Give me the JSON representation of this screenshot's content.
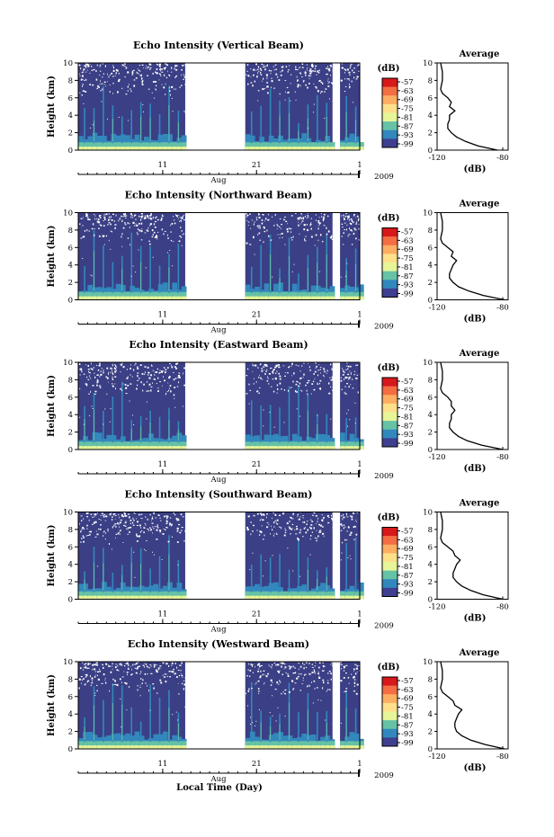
{
  "figure": {
    "xlabel": "Local Time (Day)",
    "time_axis": {
      "month_label": "Aug",
      "year_label": "2009",
      "tick_labels": [
        "11",
        "21",
        "1"
      ]
    },
    "colorbar": {
      "unit_label": "(dB)",
      "tick_labels": [
        "-57",
        "-63",
        "-69",
        "-75",
        "-81",
        "-87",
        "-93",
        "-99"
      ],
      "colors": [
        "#d7191c",
        "#f46d43",
        "#fdae61",
        "#fee08b",
        "#e6f598",
        "#66c2a5",
        "#3288bd",
        "#3f3f8f"
      ]
    },
    "panel_background": "#3b3f85"
  },
  "chart_data": [
    {
      "type": "heatmap",
      "title": "Echo Intensity (Vertical Beam)",
      "ylabel": "Height (km)",
      "ylim": [
        0,
        10
      ],
      "yticks": [
        0,
        2,
        4,
        6,
        8,
        10
      ],
      "x_tick_labels": [
        "11",
        "21",
        "1"
      ],
      "data_gaps": [
        [
          "Aug 13",
          "Aug 20"
        ],
        [
          "Aug 29",
          "Aug 30"
        ]
      ],
      "profile": {
        "title": "Average",
        "xlabel": "(dB)",
        "xticks": [
          "-120",
          "-80"
        ],
        "xlim": [
          -120,
          -80
        ],
        "height_km": [
          0,
          0.5,
          1,
          1.5,
          2,
          2.5,
          3,
          3.5,
          4,
          4.5,
          5,
          5.5,
          6,
          6.5,
          7,
          8,
          9,
          10
        ],
        "intensity_db": [
          -86,
          -97,
          -104,
          -109,
          -112,
          -114,
          -114,
          -113,
          -113,
          -110,
          -113,
          -112,
          -114,
          -117,
          -118,
          -117,
          -117,
          -118
        ]
      }
    },
    {
      "type": "heatmap",
      "title": "Echo Intensity (Northward Beam)",
      "ylabel": "Height (km)",
      "ylim": [
        0,
        10
      ],
      "yticks": [
        0,
        2,
        4,
        6,
        8,
        10
      ],
      "x_tick_labels": [
        "11",
        "21",
        "1"
      ],
      "data_gaps": [
        [
          "Aug 13",
          "Aug 20"
        ],
        [
          "Aug 29",
          "Aug 30"
        ]
      ],
      "profile": {
        "title": "Average",
        "xlabel": "(dB)",
        "xticks": [
          "-120",
          "-80"
        ],
        "xlim": [
          -120,
          -80
        ],
        "height_km": [
          0,
          0.5,
          1,
          1.5,
          2,
          2.5,
          3,
          3.5,
          4,
          4.5,
          5,
          5.5,
          6,
          6.5,
          7,
          8,
          9,
          10
        ],
        "intensity_db": [
          -82,
          -94,
          -102,
          -108,
          -111,
          -113,
          -113,
          -112,
          -111,
          -109,
          -112,
          -111,
          -114,
          -117,
          -118,
          -117,
          -117,
          -118
        ]
      }
    },
    {
      "type": "heatmap",
      "title": "Echo Intensity (Eastward Beam)",
      "ylabel": "Height (km)",
      "ylim": [
        0,
        10
      ],
      "yticks": [
        0,
        2,
        4,
        6,
        8,
        10
      ],
      "x_tick_labels": [
        "11",
        "21",
        "1"
      ],
      "data_gaps": [
        [
          "Aug 13",
          "Aug 20"
        ],
        [
          "Aug 29",
          "Aug 30"
        ]
      ],
      "profile": {
        "title": "Average",
        "xlabel": "(dB)",
        "xticks": [
          "-120",
          "-80"
        ],
        "xlim": [
          -120,
          -80
        ],
        "height_km": [
          0,
          0.5,
          1,
          1.5,
          2,
          2.5,
          3,
          3.5,
          4,
          4.5,
          5,
          5.5,
          6,
          6.5,
          7,
          8,
          9,
          10
        ],
        "intensity_db": [
          -83,
          -95,
          -103,
          -108,
          -111,
          -113,
          -113,
          -112,
          -112,
          -110,
          -112,
          -112,
          -114,
          -117,
          -118,
          -117,
          -117,
          -118
        ]
      }
    },
    {
      "type": "heatmap",
      "title": "Echo Intensity (Southward Beam)",
      "ylabel": "Height (km)",
      "ylim": [
        0,
        10
      ],
      "yticks": [
        0,
        2,
        4,
        6,
        8,
        10
      ],
      "x_tick_labels": [
        "11",
        "21",
        "1"
      ],
      "data_gaps": [
        [
          "Aug 13",
          "Aug 20"
        ],
        [
          "Aug 29",
          "Aug 30"
        ]
      ],
      "profile": {
        "title": "Average",
        "xlabel": "(dB)",
        "xticks": [
          "-120",
          "-80"
        ],
        "xlim": [
          -120,
          -80
        ],
        "height_km": [
          0,
          0.5,
          1,
          1.5,
          2,
          2.5,
          3,
          3.5,
          4,
          4.5,
          5,
          5.5,
          6,
          6.5,
          7,
          8,
          9,
          10
        ],
        "intensity_db": [
          -83,
          -94,
          -101,
          -106,
          -109,
          -111,
          -111,
          -110,
          -109,
          -107,
          -110,
          -111,
          -114,
          -117,
          -118,
          -117,
          -117,
          -118
        ]
      }
    },
    {
      "type": "heatmap",
      "title": "Echo Intensity (Westward Beam)",
      "ylabel": "Height (km)",
      "ylim": [
        0,
        10
      ],
      "yticks": [
        0,
        2,
        4,
        6,
        8,
        10
      ],
      "x_tick_labels": [
        "11",
        "21",
        "1"
      ],
      "data_gaps": [
        [
          "Aug 13",
          "Aug 20"
        ],
        [
          "Aug 29",
          "Aug 30"
        ]
      ],
      "profile": {
        "title": "Average",
        "xlabel": "(dB)",
        "xticks": [
          "-120",
          "-80"
        ],
        "xlim": [
          -120,
          -80
        ],
        "height_km": [
          0,
          0.5,
          1,
          1.5,
          2,
          2.5,
          3,
          3.5,
          4,
          4.5,
          5,
          5.5,
          6,
          6.5,
          7,
          8,
          9,
          10
        ],
        "intensity_db": [
          -82,
          -93,
          -101,
          -106,
          -109,
          -110,
          -110,
          -109,
          -108,
          -106,
          -110,
          -111,
          -114,
          -117,
          -118,
          -117,
          -117,
          -118
        ]
      }
    }
  ]
}
